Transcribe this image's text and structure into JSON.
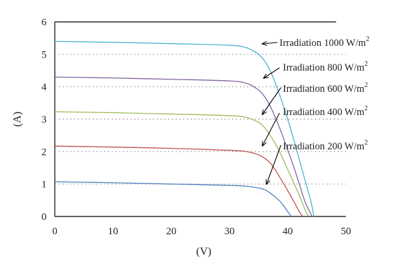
{
  "chart_data": {
    "type": "line",
    "xlabel": "(V)",
    "ylabel": "(A)",
    "xlim": [
      0,
      50
    ],
    "ylim": [
      0,
      6
    ],
    "xticks": [
      "0",
      "10",
      "20",
      "30",
      "40",
      "50"
    ],
    "yticks": [
      "0",
      "1",
      "2",
      "3",
      "4",
      "5",
      "6"
    ],
    "grid": "dotted horizontal lines at 1, 2, 3, 4, 5",
    "series": [
      {
        "name": "Irradiation 1000 W/m2",
        "color": "#4bb3c9",
        "x": [
          0,
          10,
          20,
          30,
          33,
          35,
          36,
          37,
          38,
          39,
          40,
          41,
          42,
          43,
          44,
          44.5
        ],
        "y": [
          5.4,
          5.37,
          5.33,
          5.28,
          5.2,
          5.0,
          4.8,
          4.5,
          4.05,
          3.55,
          3.0,
          2.4,
          1.75,
          1.1,
          0.45,
          0
        ]
      },
      {
        "name": "Irradiation 800 W/m2",
        "color": "#8064a2",
        "x": [
          0,
          10,
          20,
          30,
          33,
          35,
          36,
          37,
          38,
          39,
          40,
          41,
          42,
          43,
          44.2
        ],
        "y": [
          4.3,
          4.27,
          4.23,
          4.18,
          4.1,
          3.9,
          3.7,
          3.4,
          3.0,
          2.55,
          2.05,
          1.55,
          1.0,
          0.45,
          0
        ]
      },
      {
        "name": "Irradiation 600 W/m2",
        "color": "#9bbb59",
        "x": [
          0,
          10,
          20,
          30,
          33,
          35,
          36,
          37,
          38,
          39,
          40,
          41,
          42,
          43,
          43.6
        ],
        "y": [
          3.23,
          3.2,
          3.16,
          3.11,
          3.05,
          2.9,
          2.75,
          2.5,
          2.2,
          1.85,
          1.45,
          1.05,
          0.65,
          0.2,
          0
        ]
      },
      {
        "name": "Irradiation 400 W/m2",
        "color": "#c0504d",
        "x": [
          0,
          10,
          20,
          30,
          33,
          35,
          36,
          37,
          38,
          39,
          40,
          41,
          42,
          42.6
        ],
        "y": [
          2.17,
          2.14,
          2.1,
          2.04,
          2.0,
          1.9,
          1.8,
          1.65,
          1.4,
          1.1,
          0.8,
          0.48,
          0.15,
          0
        ]
      },
      {
        "name": "Irradiation 200 W/m2",
        "color": "#4f81bd",
        "x": [
          0,
          10,
          20,
          30,
          33,
          35,
          36,
          37,
          38,
          39,
          40,
          40.6
        ],
        "y": [
          1.07,
          1.04,
          1.0,
          0.96,
          0.93,
          0.88,
          0.83,
          0.72,
          0.58,
          0.4,
          0.15,
          0
        ]
      }
    ],
    "annotations": [
      {
        "text": "Irradiation 1000 W/m",
        "sup": "2"
      },
      {
        "text": "Irradiation 800 W/m",
        "sup": "2"
      },
      {
        "text": "Irradiation 600 W/m",
        "sup": "2"
      },
      {
        "text": "Irradiation 400 W/m",
        "sup": "2"
      },
      {
        "text": "Irradiation 200 W/m",
        "sup": "2"
      }
    ]
  }
}
